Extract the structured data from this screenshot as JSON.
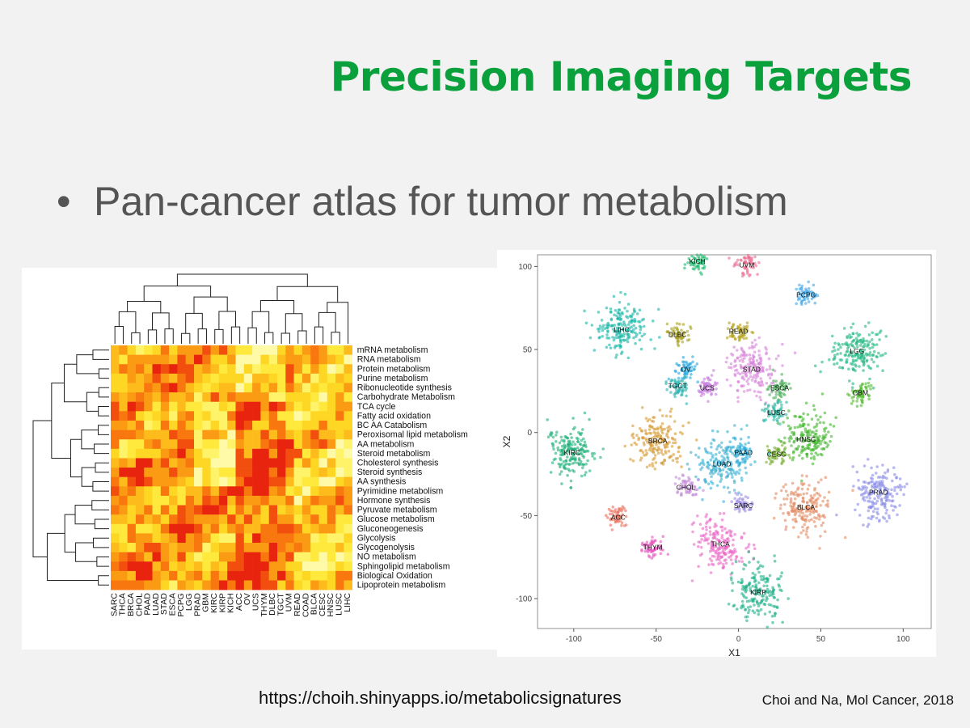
{
  "slide": {
    "title": "Precision Imaging Targets",
    "bullet_marker": "•",
    "bullet": "Pan-cancer atlas for tumor metabolism",
    "url": "https://choih.shinyapps.io/metabolicsignatures",
    "citation": "Choi and Na, Mol Cancer, 2018"
  },
  "chart_data": [
    {
      "type": "heatmap",
      "columns": [
        "SARC",
        "THCA",
        "BRCA",
        "CHOL",
        "PAAD",
        "LUAD",
        "STAD",
        "ESCA",
        "PCPG",
        "LGG",
        "PRAD",
        "GBM",
        "KIRC",
        "KIRP",
        "KICH",
        "ACC",
        "OV",
        "UCS",
        "THYM",
        "DLBC",
        "TGCT",
        "UVM",
        "READ",
        "COAD",
        "BLCA",
        "CESC",
        "HNSC",
        "LUSC",
        "LIHC"
      ],
      "rows": [
        "mRNA metabolism",
        "RNA metabolism",
        "Protein metabolism",
        "Purine metabolism",
        "Ribonucleotide synthesis",
        "Carbohydrate Metabolism",
        "TCA cycle",
        "Fatty acid oxidation",
        "BC AA Catabolism",
        "Peroxisomal lipid metabolism",
        "AA metabolism",
        "Steroid metabolism",
        "Cholesterol synthesis",
        "Steroid synthesis",
        "AA synthesis",
        "Pyrimidine metabolism",
        "Hormone synthesis",
        "Pyruvate metabolism",
        "Glucose metabolism",
        "Gluconeogenesis",
        "Glycolysis",
        "Glycogenolysis",
        "NO metabolism",
        "Sphingolipid metabolism",
        "Biological Oxidation",
        "Lipoprotein metabolism"
      ],
      "colors": [
        "#e8230e",
        "#f24f0e",
        "#f8780f",
        "#fb9b14",
        "#fdbc1c",
        "#fed624",
        "#ffe93c",
        "#fff36a",
        "#fffaa8"
      ],
      "colormap": "red-orange-yellow",
      "row_dendrogram": true,
      "column_dendrogram": true
    },
    {
      "type": "scatter",
      "xlabel": "X1",
      "ylabel": "X2",
      "xlim": [
        -122,
        117
      ],
      "ylim": [
        -118,
        107
      ],
      "xticks": [
        -100,
        -50,
        0,
        50,
        100
      ],
      "yticks": [
        -100,
        -50,
        0,
        50,
        100
      ],
      "grid": false,
      "clusters": [
        {
          "name": "KICH",
          "x": -25,
          "y": 103,
          "color": "#1dbb6e"
        },
        {
          "name": "UVM",
          "x": 5,
          "y": 101,
          "color": "#ef6a8f"
        },
        {
          "name": "PCPG",
          "x": 41,
          "y": 83,
          "color": "#3fa7e8"
        },
        {
          "name": "LIHC",
          "x": -71,
          "y": 62,
          "color": "#18b6a6"
        },
        {
          "name": "DLBC",
          "x": -37,
          "y": 59,
          "color": "#a9a21a"
        },
        {
          "name": "READ",
          "x": 0,
          "y": 61,
          "color": "#b4a21a"
        },
        {
          "name": "LGG",
          "x": 72,
          "y": 49,
          "color": "#22b882"
        },
        {
          "name": "OV",
          "x": -32,
          "y": 38,
          "color": "#2aa7dc"
        },
        {
          "name": "STAD",
          "x": 8,
          "y": 38,
          "color": "#d783d8"
        },
        {
          "name": "TGCT",
          "x": -37,
          "y": 28,
          "color": "#29b4b0"
        },
        {
          "name": "UCS",
          "x": -19,
          "y": 27,
          "color": "#c77be0"
        },
        {
          "name": "ESCA",
          "x": 25,
          "y": 27,
          "color": "#4fb05c"
        },
        {
          "name": "GBM",
          "x": 74,
          "y": 24,
          "color": "#4fbb2b"
        },
        {
          "name": "LUSC",
          "x": 23,
          "y": 12,
          "color": "#2bb6a4"
        },
        {
          "name": "HNSC",
          "x": 41,
          "y": -4,
          "color": "#42b62e"
        },
        {
          "name": "BRCA",
          "x": -49,
          "y": -5,
          "color": "#d69a34"
        },
        {
          "name": "PAAD",
          "x": 3,
          "y": -12,
          "color": "#2aabdb"
        },
        {
          "name": "CESC",
          "x": 23,
          "y": -13,
          "color": "#7cb036"
        },
        {
          "name": "KIRC",
          "x": -101,
          "y": -12,
          "color": "#1eb07a"
        },
        {
          "name": "LUAD",
          "x": -10,
          "y": -19,
          "color": "#3ab0d2"
        },
        {
          "name": "PRAD",
          "x": 85,
          "y": -36,
          "color": "#8a8ce6"
        },
        {
          "name": "CHOL",
          "x": -32,
          "y": -33,
          "color": "#c48ad8"
        },
        {
          "name": "SARC",
          "x": 3,
          "y": -44,
          "color": "#9e8de3"
        },
        {
          "name": "BLCA",
          "x": 41,
          "y": -45,
          "color": "#e38b62"
        },
        {
          "name": "ACC",
          "x": -73,
          "y": -51,
          "color": "#ea6e5a"
        },
        {
          "name": "THCA",
          "x": -11,
          "y": -67,
          "color": "#ea68c6"
        },
        {
          "name": "THYM",
          "x": -52,
          "y": -69,
          "color": "#e855c0"
        },
        {
          "name": "KIRP",
          "x": 12,
          "y": -96,
          "color": "#20b088"
        }
      ]
    }
  ]
}
